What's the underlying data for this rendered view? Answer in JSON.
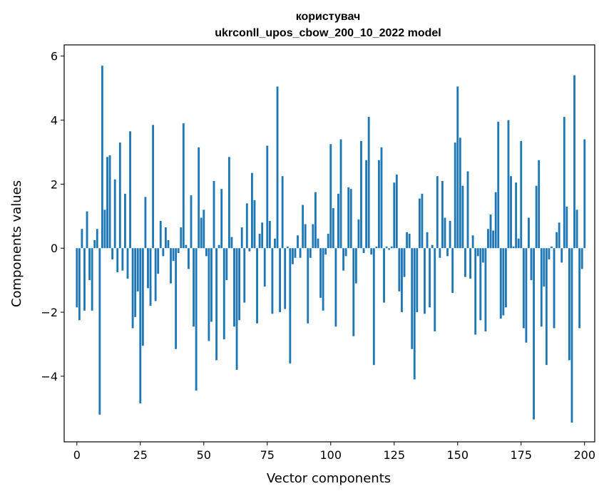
{
  "chart_data": {
    "type": "bar",
    "title_line1": "користувач",
    "title_line2": "ukrconll_upos_cbow_200_10_2022 model",
    "xlabel": "Vector components",
    "ylabel": "Components values",
    "xlim": [
      -5,
      204
    ],
    "ylim": [
      -6.05,
      6.35
    ],
    "xticks": [
      0,
      25,
      50,
      75,
      100,
      125,
      150,
      175,
      200
    ],
    "xtick_labels": [
      "0",
      "25",
      "50",
      "75",
      "100",
      "125",
      "150",
      "175",
      "200"
    ],
    "yticks": [
      -4,
      -2,
      0,
      2,
      4,
      6
    ],
    "ytick_labels": [
      "−4",
      "−2",
      "0",
      "2",
      "4",
      "6"
    ],
    "bar_color": "#1f77b4",
    "grid": false,
    "values": [
      -1.85,
      -2.25,
      0.6,
      -1.95,
      1.15,
      -1.0,
      -1.95,
      0.25,
      0.6,
      -5.2,
      5.7,
      1.2,
      2.85,
      2.9,
      -0.35,
      2.15,
      -0.75,
      3.3,
      -0.7,
      1.7,
      -0.95,
      3.65,
      -2.5,
      -2.15,
      -1.35,
      -4.85,
      -3.05,
      1.6,
      -1.25,
      -1.8,
      3.85,
      -1.65,
      -0.8,
      0.85,
      -0.25,
      0.65,
      0.25,
      -1.1,
      -0.4,
      -3.15,
      -0.15,
      0.65,
      3.9,
      0.1,
      -0.65,
      1.65,
      -2.45,
      -4.45,
      3.15,
      0.95,
      1.2,
      -0.25,
      -2.9,
      -2.3,
      2.1,
      -3.5,
      0.1,
      1.85,
      -2.85,
      -1.0,
      2.85,
      0.35,
      -2.45,
      -3.8,
      -2.25,
      0.65,
      -1.7,
      1.4,
      -0.1,
      2.35,
      1.5,
      -2.35,
      0.45,
      0.8,
      -1.2,
      3.2,
      0.85,
      -2.05,
      0.3,
      5.05,
      -2.0,
      2.25,
      -1.9,
      0.05,
      -3.6,
      -0.5,
      -0.3,
      0.4,
      -0.3,
      1.35,
      0.75,
      -2.35,
      -0.3,
      0.75,
      1.75,
      0.3,
      -1.55,
      -1.95,
      -0.2,
      0.45,
      3.25,
      1.25,
      -2.45,
      1.7,
      3.4,
      -0.7,
      -0.25,
      1.9,
      1.85,
      -2.75,
      -1.1,
      0.9,
      3.35,
      -0.15,
      2.75,
      4.1,
      -0.2,
      -3.65,
      0.05,
      2.75,
      3.15,
      -1.7,
      0.05,
      -0.05,
      0.05,
      2.05,
      2.3,
      -1.35,
      -2.0,
      -0.9,
      0.5,
      0.45,
      -3.15,
      -4.1,
      -2.0,
      1.55,
      1.7,
      -2.05,
      0.5,
      -1.85,
      0.1,
      -2.6,
      2.25,
      -0.3,
      2.1,
      0.95,
      -0.25,
      0.85,
      -1.4,
      3.3,
      5.05,
      3.45,
      1.95,
      -0.9,
      2.4,
      -0.95,
      0.4,
      -2.7,
      -0.25,
      -2.25,
      -0.45,
      -2.6,
      0.6,
      1.05,
      0.55,
      1.75,
      3.95,
      -2.2,
      -2.1,
      -1.85,
      4.0,
      2.25,
      0.05,
      2.05,
      0.3,
      3.35,
      -2.5,
      -2.95,
      0.95,
      -1.0,
      -5.35,
      1.95,
      2.75,
      -2.45,
      -1.2,
      -3.65,
      -0.35,
      0.05,
      -2.5,
      0.5,
      0.8,
      -0.45,
      4.1,
      1.3,
      -3.5,
      -5.45,
      5.4,
      1.2,
      -2.5,
      -0.65,
      3.4
    ]
  }
}
